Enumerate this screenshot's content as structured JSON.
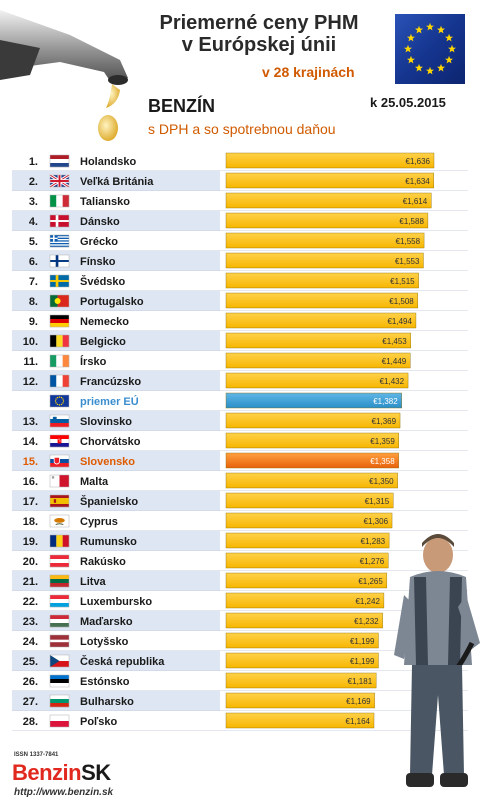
{
  "header": {
    "title_line1": "Priemerné ceny PHM",
    "title_line2": "v Európskej únii",
    "count_text": "v 28 krajinách",
    "fuel": "BENZÍN",
    "note": "s DPH a so spotrebnou daňou",
    "date": "k 25.05.2015"
  },
  "footer": {
    "issn": "ISSN 1337-7841",
    "logo_part1": "Benzin",
    "logo_part2": "SK",
    "url": "http://www.benzin.sk"
  },
  "colors": {
    "bar": "#f7b500",
    "bar_eu": "#2a8fc8",
    "bar_highlight": "#e8620a",
    "row_shade": "#dde6f2",
    "highlight_text": "#e05a00",
    "eu_text": "#3a8ed0"
  },
  "chart_data": {
    "type": "bar",
    "orientation": "horizontal",
    "currency": "€",
    "xlim": [
      0,
      1.636
    ],
    "rows": [
      {
        "rank": "1.",
        "country": "Holandsko",
        "value": 1.636,
        "label": "€1,636",
        "flag": "netherlands-flag"
      },
      {
        "rank": "2.",
        "country": "Veľká Británia",
        "value": 1.634,
        "label": "€1,634",
        "flag": "uk-flag"
      },
      {
        "rank": "3.",
        "country": "Taliansko",
        "value": 1.614,
        "label": "€1,614",
        "flag": "italy-flag"
      },
      {
        "rank": "4.",
        "country": "Dánsko",
        "value": 1.588,
        "label": "€1,588",
        "flag": "denmark-flag"
      },
      {
        "rank": "5.",
        "country": "Grécko",
        "value": 1.558,
        "label": "€1,558",
        "flag": "greece-flag"
      },
      {
        "rank": "6.",
        "country": "Fínsko",
        "value": 1.553,
        "label": "€1,553",
        "flag": "finland-flag"
      },
      {
        "rank": "7.",
        "country": "Švédsko",
        "value": 1.515,
        "label": "€1,515",
        "flag": "sweden-flag"
      },
      {
        "rank": "8.",
        "country": "Portugalsko",
        "value": 1.508,
        "label": "€1,508",
        "flag": "portugal-flag"
      },
      {
        "rank": "9.",
        "country": "Nemecko",
        "value": 1.494,
        "label": "€1,494",
        "flag": "germany-flag"
      },
      {
        "rank": "10.",
        "country": "Belgicko",
        "value": 1.453,
        "label": "€1,453",
        "flag": "belgium-flag"
      },
      {
        "rank": "11.",
        "country": "Írsko",
        "value": 1.449,
        "label": "€1,449",
        "flag": "ireland-flag"
      },
      {
        "rank": "12.",
        "country": "Francúzsko",
        "value": 1.432,
        "label": "€1,432",
        "flag": "france-flag"
      },
      {
        "rank": "",
        "country": "priemer EÚ",
        "value": 1.382,
        "label": "€1,382",
        "flag": "eu-flag",
        "kind": "eu"
      },
      {
        "rank": "13.",
        "country": "Slovinsko",
        "value": 1.369,
        "label": "€1,369",
        "flag": "slovenia-flag"
      },
      {
        "rank": "14.",
        "country": "Chorvátsko",
        "value": 1.359,
        "label": "€1,359",
        "flag": "croatia-flag"
      },
      {
        "rank": "15.",
        "country": "Slovensko",
        "value": 1.358,
        "label": "€1,358",
        "flag": "slovakia-flag",
        "kind": "highlight"
      },
      {
        "rank": "16.",
        "country": "Malta",
        "value": 1.35,
        "label": "€1,350",
        "flag": "malta-flag"
      },
      {
        "rank": "17.",
        "country": "Španielsko",
        "value": 1.315,
        "label": "€1,315",
        "flag": "spain-flag"
      },
      {
        "rank": "18.",
        "country": "Cyprus",
        "value": 1.306,
        "label": "€1,306",
        "flag": "cyprus-flag"
      },
      {
        "rank": "19.",
        "country": "Rumunsko",
        "value": 1.283,
        "label": "€1,283",
        "flag": "romania-flag"
      },
      {
        "rank": "20.",
        "country": "Rakúsko",
        "value": 1.276,
        "label": "€1,276",
        "flag": "austria-flag"
      },
      {
        "rank": "21.",
        "country": "Litva",
        "value": 1.265,
        "label": "€1,265",
        "flag": "lithuania-flag"
      },
      {
        "rank": "22.",
        "country": "Luxembursko",
        "value": 1.242,
        "label": "€1,242",
        "flag": "luxembourg-flag"
      },
      {
        "rank": "23.",
        "country": "Maďarsko",
        "value": 1.232,
        "label": "€1,232",
        "flag": "hungary-flag"
      },
      {
        "rank": "24.",
        "country": "Lotyšsko",
        "value": 1.199,
        "label": "€1,199",
        "flag": "latvia-flag"
      },
      {
        "rank": "25.",
        "country": "Česká republika",
        "value": 1.199,
        "label": "€1,199",
        "flag": "czech-flag"
      },
      {
        "rank": "26.",
        "country": "Estónsko",
        "value": 1.181,
        "label": "€1,181",
        "flag": "estonia-flag"
      },
      {
        "rank": "27.",
        "country": "Bulharsko",
        "value": 1.169,
        "label": "€1,169",
        "flag": "bulgaria-flag"
      },
      {
        "rank": "28.",
        "country": "Poľsko",
        "value": 1.164,
        "label": "€1,164",
        "flag": "poland-flag"
      }
    ]
  }
}
